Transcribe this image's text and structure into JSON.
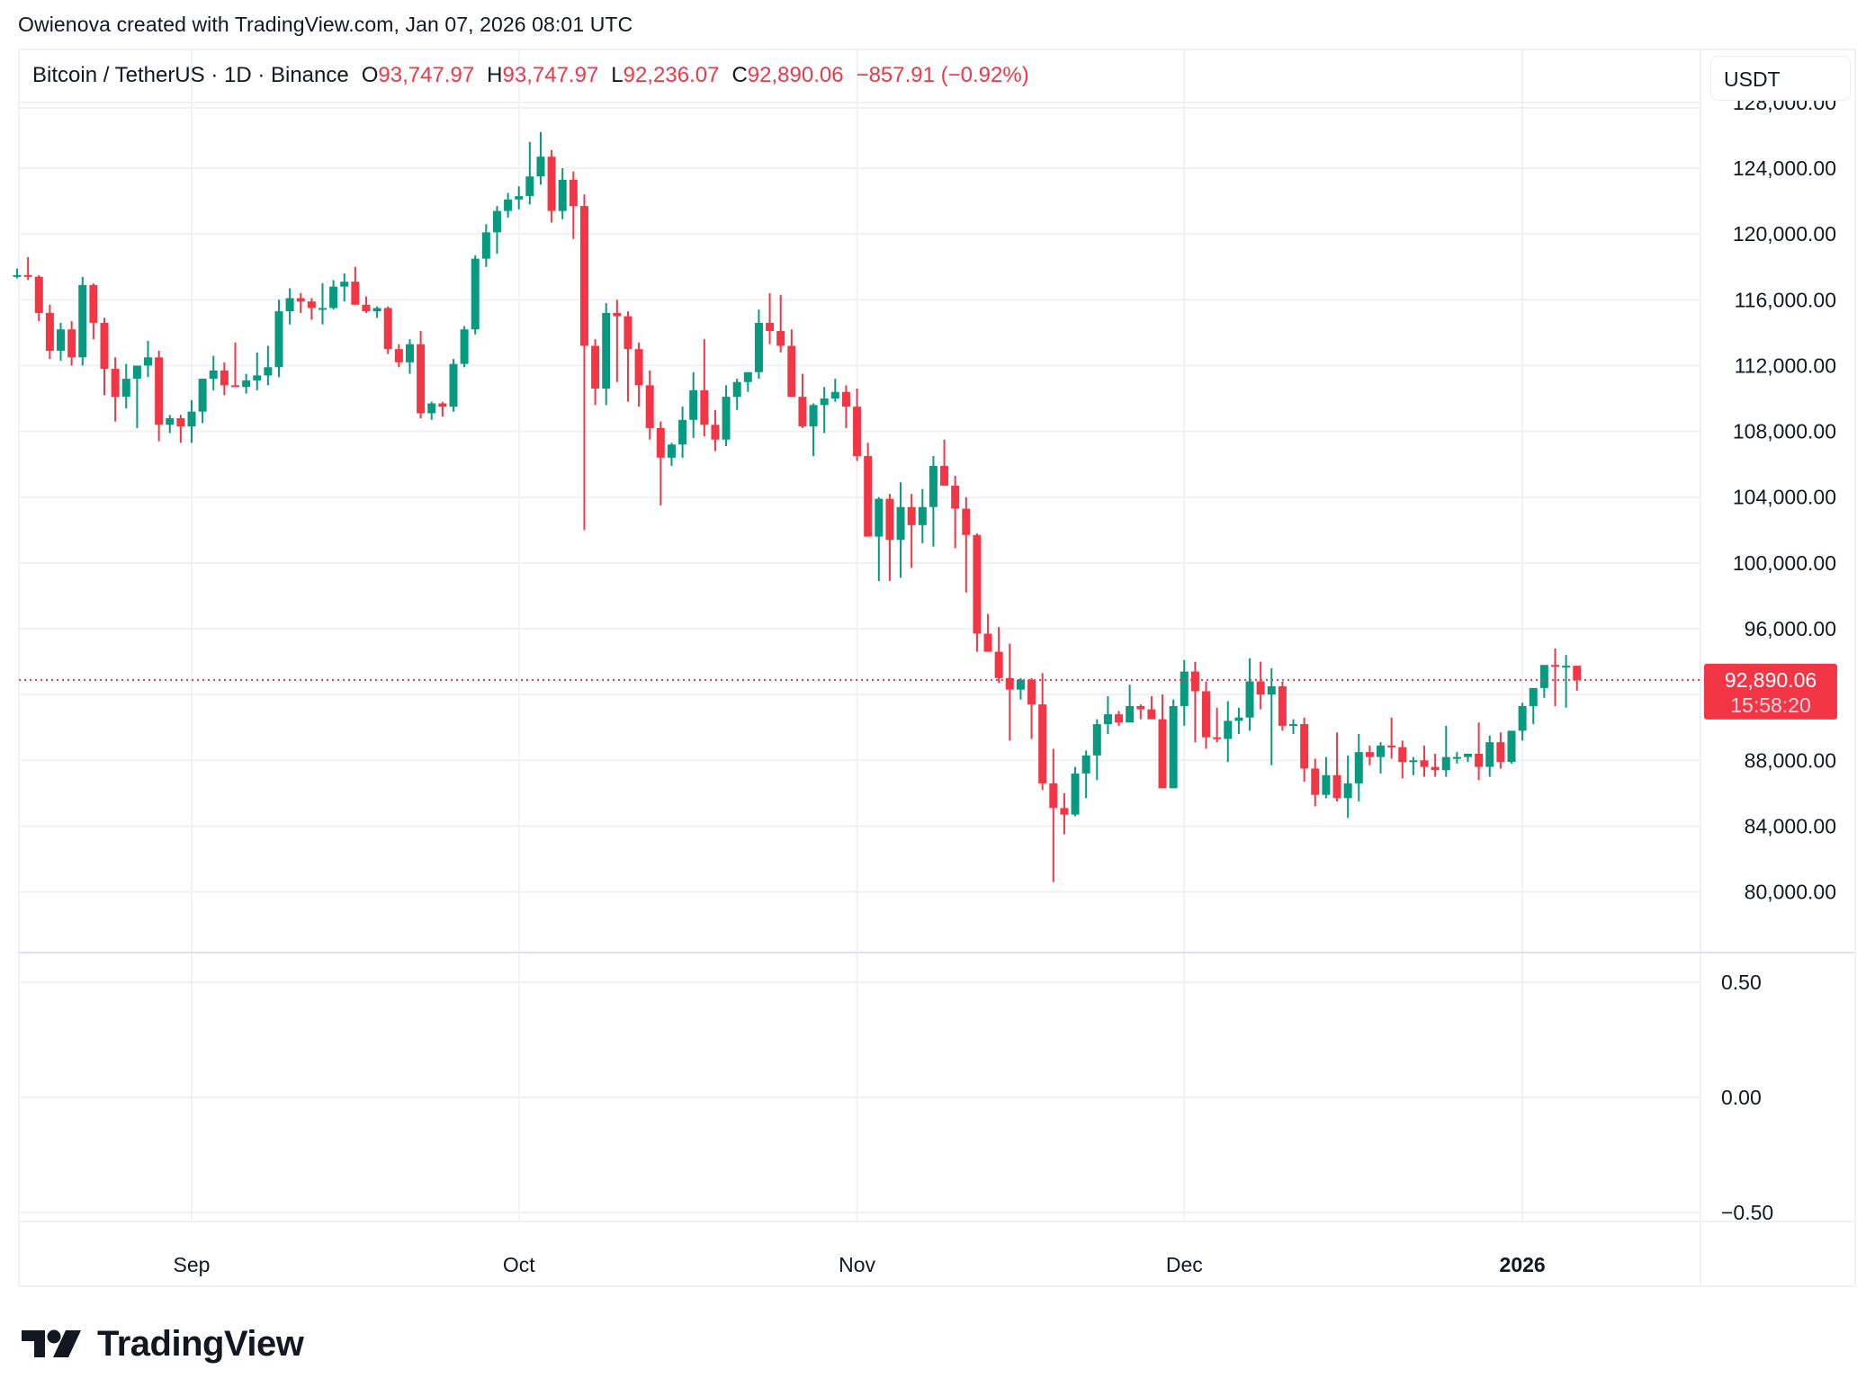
{
  "credit": "Owienova created with TradingView.com, Jan 07, 2026 08:01 UTC",
  "legend": {
    "symbol": "Bitcoin / TetherUS · 1D · Binance",
    "open_label": "O",
    "open": "93,747.97",
    "high_label": "H",
    "high": "93,747.97",
    "low_label": "L",
    "low": "92,236.07",
    "close_label": "C",
    "close": "92,890.06",
    "change": "−857.91 (−0.92%)"
  },
  "currency_button": "USDT",
  "price_label": {
    "price": "92,890.06",
    "countdown": "15:58:20"
  },
  "logo_text": "TradingView",
  "colors": {
    "up": "#089981",
    "down": "#f23645",
    "grid": "#f0f1f3",
    "text": "#131722",
    "price_line": "#f23645"
  },
  "chart_data": {
    "type": "candlestick",
    "title": "Bitcoin / TetherUS · 1D · Binance",
    "xlabel": "",
    "ylabel": "USDT",
    "ylim": [
      76500,
      129500
    ],
    "grid": true,
    "x_ticks": [
      {
        "label": "Sep",
        "index": 16,
        "bold": false
      },
      {
        "label": "Oct",
        "index": 46,
        "bold": false
      },
      {
        "label": "Nov",
        "index": 77,
        "bold": false
      },
      {
        "label": "Dec",
        "index": 107,
        "bold": false
      },
      {
        "label": "2026",
        "index": 138,
        "bold": true
      }
    ],
    "y_ticks": [
      "128,000.00",
      "124,000.00",
      "120,000.00",
      "116,000.00",
      "112,000.00",
      "108,000.00",
      "104,000.00",
      "100,000.00",
      "96,000.00",
      "88,000.00",
      "84,000.00",
      "80,000.00"
    ],
    "y_tick_values": [
      128000,
      124000,
      120000,
      116000,
      112000,
      108000,
      104000,
      100000,
      96000,
      88000,
      84000,
      80000
    ],
    "indicator_pane": {
      "y_ticks": [
        "0.50",
        "0.00",
        "−0.50"
      ],
      "y_tick_values": [
        0.5,
        0,
        -0.5
      ]
    },
    "start_date": "2025-08-16",
    "end_date": "2026-01-07",
    "last_price": 92890.06,
    "ohlc": [
      [
        117400,
        117900,
        117300,
        117500
      ],
      [
        117500,
        118600,
        117200,
        117400
      ],
      [
        117400,
        117500,
        114700,
        115200
      ],
      [
        115200,
        115700,
        112400,
        112900
      ],
      [
        112900,
        114600,
        112300,
        114200
      ],
      [
        114200,
        114700,
        112000,
        112500
      ],
      [
        112500,
        117400,
        112000,
        116900
      ],
      [
        116900,
        117000,
        113600,
        114600
      ],
      [
        114600,
        114900,
        110200,
        111800
      ],
      [
        111800,
        112500,
        108600,
        110100
      ],
      [
        110100,
        112100,
        109400,
        111200
      ],
      [
        111200,
        112000,
        108200,
        112000
      ],
      [
        112000,
        113500,
        111300,
        112500
      ],
      [
        112500,
        112900,
        107400,
        108400
      ],
      [
        108400,
        109000,
        107900,
        108800
      ],
      [
        108800,
        109000,
        107300,
        108300
      ],
      [
        108300,
        109900,
        107300,
        109200
      ],
      [
        109200,
        111200,
        108500,
        111200
      ],
      [
        111200,
        112600,
        110500,
        111700
      ],
      [
        111700,
        112200,
        110200,
        110800
      ],
      [
        110800,
        113400,
        110700,
        110700
      ],
      [
        110700,
        111500,
        110300,
        111100
      ],
      [
        111100,
        112800,
        110500,
        111400
      ],
      [
        111400,
        113200,
        110800,
        111900
      ],
      [
        111900,
        116000,
        111300,
        115300
      ],
      [
        115300,
        116700,
        114500,
        116100
      ],
      [
        116100,
        116400,
        115200,
        115900
      ],
      [
        115900,
        116100,
        114800,
        115500
      ],
      [
        115500,
        117000,
        114500,
        115500
      ],
      [
        115500,
        117200,
        115400,
        116800
      ],
      [
        116800,
        117600,
        115900,
        117100
      ],
      [
        117100,
        118000,
        116000,
        115700
      ],
      [
        115700,
        116200,
        115200,
        115300
      ],
      [
        115300,
        115600,
        114900,
        115500
      ],
      [
        115500,
        115600,
        112700,
        113000
      ],
      [
        113000,
        113300,
        111900,
        112200
      ],
      [
        112200,
        113600,
        111500,
        113300
      ],
      [
        113300,
        114100,
        108800,
        109100
      ],
      [
        109100,
        109800,
        108700,
        109700
      ],
      [
        109700,
        109800,
        108900,
        109500
      ],
      [
        109500,
        112400,
        109200,
        112100
      ],
      [
        112100,
        114400,
        111900,
        114200
      ],
      [
        114200,
        118700,
        113900,
        118500
      ],
      [
        118500,
        120600,
        118000,
        120100
      ],
      [
        120100,
        121700,
        118800,
        121400
      ],
      [
        121400,
        122500,
        121000,
        122100
      ],
      [
        122100,
        122900,
        121500,
        122300
      ],
      [
        122300,
        125600,
        121800,
        123500
      ],
      [
        123500,
        126200,
        123000,
        124700
      ],
      [
        124700,
        125100,
        120700,
        121400
      ],
      [
        121400,
        124000,
        120900,
        123300
      ],
      [
        123300,
        123800,
        119700,
        121700
      ],
      [
        121700,
        122400,
        102000,
        113200
      ],
      [
        113200,
        113600,
        109600,
        110600
      ],
      [
        110600,
        115800,
        109600,
        115200
      ],
      [
        115200,
        116000,
        111000,
        115000
      ],
      [
        115000,
        115300,
        109800,
        113000
      ],
      [
        113000,
        113400,
        109500,
        110800
      ],
      [
        110800,
        111700,
        107500,
        108200
      ],
      [
        108200,
        108600,
        103500,
        106400
      ],
      [
        106400,
        107300,
        105900,
        107200
      ],
      [
        107200,
        109500,
        106400,
        108700
      ],
      [
        108700,
        111600,
        107600,
        110500
      ],
      [
        110500,
        113600,
        107700,
        108400
      ],
      [
        108400,
        109300,
        106800,
        107500
      ],
      [
        107500,
        110800,
        107100,
        110100
      ],
      [
        110100,
        111200,
        109300,
        111000
      ],
      [
        111000,
        111500,
        110400,
        111600
      ],
      [
        111600,
        115400,
        111200,
        114600
      ],
      [
        114600,
        116400,
        113300,
        114100
      ],
      [
        114100,
        116300,
        112800,
        113200
      ],
      [
        113200,
        114200,
        110600,
        110100
      ],
      [
        110100,
        111500,
        108200,
        108300
      ],
      [
        108300,
        109700,
        106500,
        109600
      ],
      [
        109600,
        110700,
        107900,
        110000
      ],
      [
        110000,
        111200,
        109800,
        110400
      ],
      [
        110400,
        110800,
        108200,
        109500
      ],
      [
        109500,
        110600,
        106200,
        106500
      ],
      [
        106500,
        107300,
        103000,
        101600
      ],
      [
        101600,
        104000,
        98900,
        103900
      ],
      [
        103900,
        104200,
        98900,
        101400
      ],
      [
        101400,
        104900,
        99100,
        103400
      ],
      [
        103400,
        104200,
        99700,
        102300
      ],
      [
        102300,
        104500,
        101200,
        103400
      ],
      [
        103400,
        106500,
        101000,
        105900
      ],
      [
        105900,
        107500,
        104900,
        104700
      ],
      [
        104700,
        105300,
        100900,
        103300
      ],
      [
        103300,
        104000,
        98200,
        101700
      ],
      [
        101700,
        101800,
        94600,
        95700
      ],
      [
        95700,
        96900,
        94600,
        94600
      ],
      [
        94600,
        96100,
        92700,
        93000
      ],
      [
        93000,
        95100,
        89200,
        92300
      ],
      [
        92300,
        93000,
        91700,
        92900
      ],
      [
        92900,
        93000,
        89300,
        91400
      ],
      [
        91400,
        93300,
        86200,
        86600
      ],
      [
        86600,
        88700,
        80600,
        85100
      ],
      [
        85100,
        86000,
        83500,
        84700
      ],
      [
        84700,
        87600,
        84600,
        87200
      ],
      [
        87200,
        88600,
        85700,
        88300
      ],
      [
        88300,
        90500,
        86800,
        90200
      ],
      [
        90200,
        91900,
        89600,
        90800
      ],
      [
        90800,
        91000,
        90100,
        90300
      ],
      [
        90300,
        92600,
        90300,
        91300
      ],
      [
        91300,
        91400,
        90500,
        91100
      ],
      [
        91100,
        91900,
        90600,
        90500
      ],
      [
        90500,
        92000,
        87200,
        86300
      ],
      [
        86300,
        91700,
        86300,
        91300
      ],
      [
        91300,
        94100,
        90100,
        93400
      ],
      [
        93400,
        94000,
        89100,
        92200
      ],
      [
        92200,
        92800,
        88700,
        89400
      ],
      [
        89400,
        91200,
        89100,
        89300
      ],
      [
        89300,
        91600,
        87900,
        90400
      ],
      [
        90400,
        91200,
        89600,
        90600
      ],
      [
        90600,
        94200,
        89800,
        92800
      ],
      [
        92800,
        94000,
        91100,
        92000
      ],
      [
        92000,
        93600,
        87700,
        92500
      ],
      [
        92500,
        92800,
        89800,
        90100
      ],
      [
        90100,
        90500,
        89600,
        90200
      ],
      [
        90200,
        90600,
        86700,
        87500
      ],
      [
        87500,
        88100,
        85200,
        85900
      ],
      [
        85900,
        88200,
        85700,
        87100
      ],
      [
        87100,
        89700,
        85500,
        85700
      ],
      [
        85700,
        88300,
        84500,
        86600
      ],
      [
        86600,
        89600,
        85500,
        88500
      ],
      [
        88500,
        88900,
        87700,
        88200
      ],
      [
        88200,
        89100,
        87200,
        88900
      ],
      [
        88900,
        90600,
        88100,
        88800
      ],
      [
        88800,
        89200,
        86900,
        87900
      ],
      [
        87900,
        88200,
        87100,
        88000
      ],
      [
        88000,
        88900,
        87000,
        87600
      ],
      [
        87600,
        88400,
        87000,
        87400
      ],
      [
        87400,
        90100,
        87000,
        88200
      ],
      [
        88200,
        88500,
        87800,
        88200
      ],
      [
        88200,
        88300,
        87900,
        88400
      ],
      [
        88400,
        90300,
        86800,
        87600
      ],
      [
        87600,
        89500,
        87000,
        89100
      ],
      [
        89100,
        89700,
        87500,
        87900
      ],
      [
        87900,
        89600,
        87800,
        89800
      ],
      [
        89800,
        91500,
        89200,
        91300
      ],
      [
        91300,
        91900,
        90200,
        92400
      ],
      [
        92400,
        93100,
        91800,
        93800
      ],
      [
        93800,
        94800,
        91300,
        93700
      ],
      [
        93700,
        94400,
        91200,
        93750
      ],
      [
        93750,
        93750,
        92236,
        92890
      ]
    ]
  }
}
